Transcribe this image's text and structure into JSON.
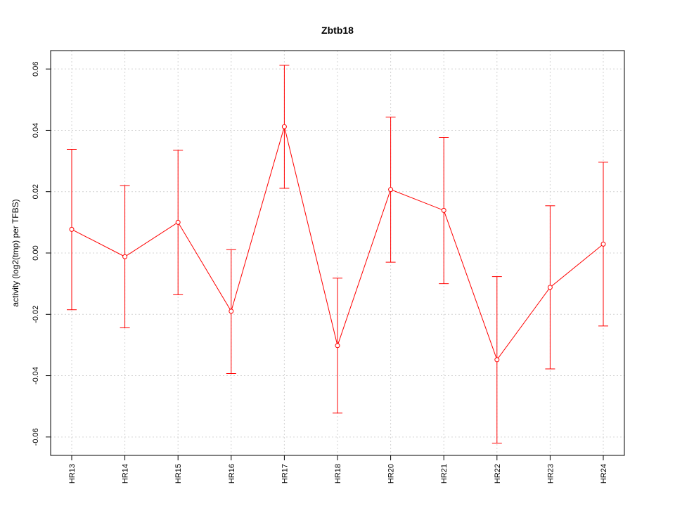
{
  "chart_data": {
    "type": "line",
    "title": "Zbtb18",
    "xlabel": "",
    "ylabel": "activity (log2(tmp) per TFBS)",
    "categories": [
      "HR13",
      "HR14",
      "HR15",
      "HR16",
      "HR17",
      "HR18",
      "HR20",
      "HR21",
      "HR22",
      "HR23",
      "HR24"
    ],
    "values": [
      0.0077,
      -0.0012,
      0.01,
      -0.019,
      0.0412,
      -0.0302,
      0.0207,
      0.0139,
      -0.0348,
      -0.0112,
      0.0029
    ],
    "upper": [
      0.0338,
      0.022,
      0.0335,
      0.0011,
      0.0612,
      -0.0082,
      0.0443,
      0.0377,
      -0.0077,
      0.0154,
      0.0296
    ],
    "lower": [
      -0.0185,
      -0.0244,
      -0.0136,
      -0.0393,
      0.0211,
      -0.0522,
      -0.003,
      -0.01,
      -0.062,
      -0.0378,
      -0.0238
    ],
    "ylim": [
      -0.066,
      0.066
    ],
    "yticks": [
      -0.06,
      -0.04,
      -0.02,
      0.0,
      0.02,
      0.04,
      0.06
    ],
    "ytick_labels": [
      "-0.06",
      "-0.04",
      "-0.02",
      "0.00",
      "0.02",
      "0.04",
      "0.06"
    ],
    "grid": true,
    "reference_line": 0,
    "colors": {
      "series": "#ff0000",
      "grid": "#d3d3d3",
      "axis": "#000000"
    }
  }
}
